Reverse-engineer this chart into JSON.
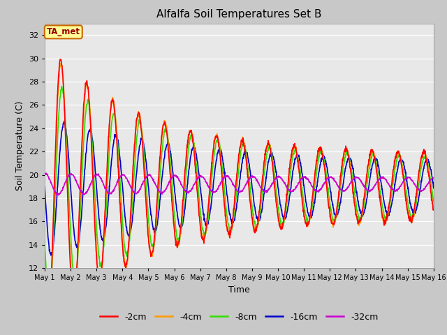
{
  "title": "Alfalfa Soil Temperatures Set B",
  "xlabel": "Time",
  "ylabel": "Soil Temperature (C)",
  "ylim": [
    12,
    33
  ],
  "yticks": [
    12,
    14,
    16,
    18,
    20,
    22,
    24,
    26,
    28,
    30,
    32
  ],
  "fig_bg_color": "#c8c8c8",
  "plot_bg_color": "#e8e8e8",
  "grid_color": "#ffffff",
  "annotation_text": "TA_met",
  "annotation_bg": "#ffff99",
  "annotation_border": "#cc6600",
  "annotation_text_color": "#990000",
  "series_colors": {
    "-2cm": "#ff0000",
    "-4cm": "#ff9900",
    "-8cm": "#33dd00",
    "-16cm": "#0000cc",
    "-32cm": "#cc00cc"
  },
  "num_days": 15,
  "points_per_day": 96
}
